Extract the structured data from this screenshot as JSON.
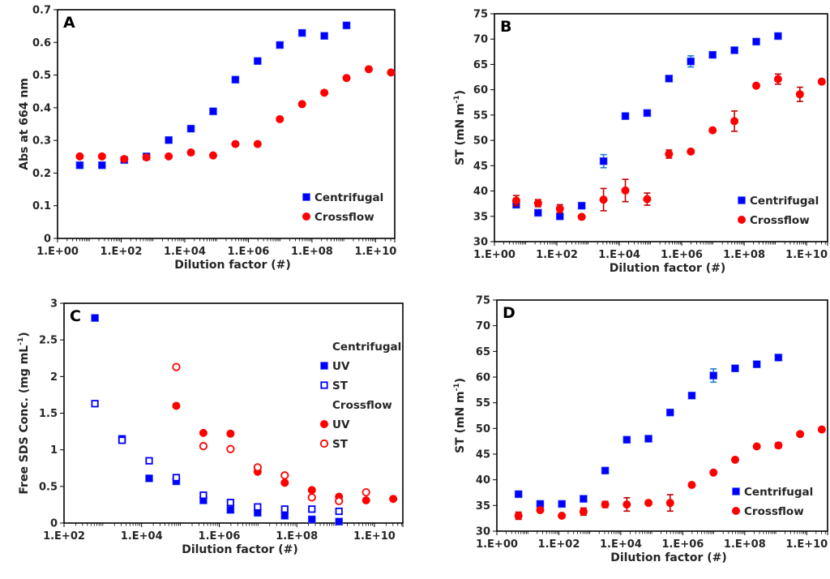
{
  "figure": {
    "colors": {
      "centrifugal": "#0000ff",
      "centrifugal_error": "#1f7fd0",
      "crossflow": "#ff0000",
      "crossflow_error": "#c00000",
      "axis": "#000000",
      "text": "#262626"
    }
  },
  "chart_data": [
    {
      "id": "A",
      "type": "scatter",
      "panel_label": "A",
      "title": "",
      "xlabel": "Dilution factor (#)",
      "ylabel": "Abs at 664 nm",
      "xscale": "log",
      "xlim": [
        1,
        40000000000.0
      ],
      "ylim": [
        0,
        0.7
      ],
      "yticks": [
        0,
        0.1,
        0.2,
        0.3,
        0.4,
        0.5,
        0.6,
        0.7
      ],
      "ytick_labels": [
        "0",
        "0.1",
        "0.2",
        "0.3",
        "0.4",
        "0.5",
        "0.6",
        "0.7"
      ],
      "xticks": [
        1,
        100.0,
        10000.0,
        1000000.0,
        100000000.0,
        10000000000.0
      ],
      "xtick_labels": [
        "1.E+00",
        "1.E+02",
        "1.E+04",
        "1.E+06",
        "1.E+08",
        "1.E+10"
      ],
      "grid": false,
      "legend_position": "bottom-right",
      "series": [
        {
          "name": "Centrifugal",
          "marker": "square-filled",
          "color": "#0000ff",
          "x": [
            5,
            25,
            125,
            625,
            3125,
            15625,
            78125,
            390625,
            1953125,
            9765625,
            48828125,
            244140625,
            1220703125
          ],
          "y": [
            0.224,
            0.224,
            0.24,
            0.251,
            0.301,
            0.336,
            0.389,
            0.486,
            0.543,
            0.592,
            0.629,
            0.62,
            0.652
          ]
        },
        {
          "name": "Crossflow",
          "marker": "circle-filled",
          "color": "#ff0000",
          "x": [
            5,
            25,
            125,
            625,
            3125,
            15625,
            78125,
            390625,
            1953125,
            9765625,
            48828125,
            244140625,
            1220703125,
            6103515625,
            30517578125
          ],
          "y": [
            0.251,
            0.251,
            0.243,
            0.248,
            0.251,
            0.263,
            0.254,
            0.289,
            0.289,
            0.365,
            0.411,
            0.446,
            0.491,
            0.518,
            0.508
          ]
        }
      ]
    },
    {
      "id": "B",
      "type": "scatter",
      "panel_label": "B",
      "title": "",
      "xlabel": "Dilution factor (#)",
      "ylabel": "ST (mN m",
      "ylabel_sup": "-1",
      "ylabel_end": ")",
      "xscale": "log",
      "xlim": [
        1,
        47000000000.0
      ],
      "ylim": [
        30,
        75
      ],
      "yticks": [
        30,
        35,
        40,
        45,
        50,
        55,
        60,
        65,
        70,
        75
      ],
      "ytick_labels": [
        "30",
        "35",
        "40",
        "45",
        "50",
        "55",
        "60",
        "65",
        "70",
        "75"
      ],
      "xticks": [
        1,
        100.0,
        10000.0,
        1000000.0,
        100000000.0,
        10000000000.0
      ],
      "xtick_labels": [
        "1.E+00",
        "1.E+02",
        "1.E+04",
        "1.E+06",
        "1.E+08",
        "1.E+10"
      ],
      "grid": false,
      "legend_position": "bottom-right",
      "series": [
        {
          "name": "Centrifugal",
          "marker": "square-filled",
          "color": "#0000ff",
          "x": [
            5,
            25,
            125,
            625,
            3125,
            15625,
            78125,
            390625,
            1953125,
            9765625,
            48828125,
            244140625,
            1220703125
          ],
          "y": [
            37.3,
            35.7,
            35.0,
            37.1,
            45.9,
            54.8,
            55.4,
            62.2,
            65.6,
            66.9,
            67.8,
            69.5,
            70.6
          ],
          "yerr": [
            0.3,
            0.2,
            0.3,
            0.2,
            1.3,
            0.3,
            0.5,
            0.3,
            1.1,
            0.2,
            0.2,
            0.2,
            0.2
          ]
        },
        {
          "name": "Crossflow",
          "marker": "circle-filled",
          "color": "#ff0000",
          "x": [
            5,
            25,
            125,
            625,
            3125,
            15625,
            78125,
            390625,
            1953125,
            9765625,
            48828125,
            244140625,
            1220703125,
            6103515625,
            30517578125
          ],
          "y": [
            38.1,
            37.6,
            36.5,
            34.9,
            38.3,
            40.1,
            38.4,
            47.3,
            47.8,
            52.0,
            53.8,
            60.8,
            62.1,
            59.1,
            61.6
          ],
          "yerr": [
            1.0,
            0.7,
            0.8,
            0.2,
            2.2,
            2.2,
            1.2,
            0.8,
            0.3,
            0.3,
            2.0,
            0.4,
            1.0,
            1.4,
            0.3
          ]
        }
      ]
    },
    {
      "id": "C",
      "type": "scatter",
      "panel_label": "C",
      "title": "",
      "xlabel": "Dilution factor (#)",
      "ylabel": "Free SDS Conc. (mg mL",
      "ylabel_sup": "-1",
      "ylabel_end": ")",
      "xscale": "log",
      "xlim": [
        100,
        54000000000.0
      ],
      "ylim": [
        0,
        3
      ],
      "yticks": [
        0,
        0.5,
        1,
        1.5,
        2,
        2.5,
        3
      ],
      "ytick_labels": [
        "0",
        "0.5",
        "1",
        "1.5",
        "2",
        "2.5",
        "3"
      ],
      "xticks": [
        100.0,
        10000.0,
        1000000.0,
        100000000.0,
        10000000000.0
      ],
      "xtick_labels": [
        "1.E+02",
        "1.E+04",
        "1.E+06",
        "1.E+08",
        "1.E+10"
      ],
      "grid": false,
      "legend_position": "right",
      "legend_groups": [
        {
          "title": "Centrifugal",
          "items": [
            "UV",
            "ST"
          ]
        },
        {
          "title": "Crossflow",
          "items": [
            "UV",
            "ST"
          ]
        }
      ],
      "series": [
        {
          "name": "Centrifugal UV",
          "group": "Centrifugal",
          "label": "UV",
          "marker": "square-filled",
          "color": "#0000ff",
          "x": [
            625,
            3125,
            15625,
            78125,
            390625,
            1953125,
            9765625,
            48828125,
            244140625,
            1220703125
          ],
          "y": [
            2.8,
            1.15,
            0.61,
            0.57,
            0.31,
            0.18,
            0.14,
            0.1,
            0.05,
            0.02
          ]
        },
        {
          "name": "Centrifugal ST",
          "group": "Centrifugal",
          "label": "ST",
          "marker": "square-open",
          "color": "#0000ff",
          "x": [
            625,
            3125,
            15625,
            78125,
            390625,
            1953125,
            9765625,
            48828125,
            244140625,
            1220703125
          ],
          "y": [
            1.63,
            1.13,
            0.85,
            0.62,
            0.38,
            0.28,
            0.22,
            0.19,
            0.19,
            0.16
          ]
        },
        {
          "name": "Crossflow UV",
          "group": "Crossflow",
          "label": "UV",
          "marker": "circle-filled",
          "color": "#ff0000",
          "x": [
            78125,
            390625,
            1953125,
            9765625,
            48828125,
            244140625,
            1220703125,
            6103515625,
            30517578125
          ],
          "y": [
            1.6,
            1.23,
            1.22,
            0.7,
            0.55,
            0.45,
            0.36,
            0.31,
            0.33
          ]
        },
        {
          "name": "Crossflow ST",
          "group": "Crossflow",
          "label": "ST",
          "marker": "circle-open",
          "color": "#ff0000",
          "x": [
            78125,
            390625,
            1953125,
            9765625,
            48828125,
            244140625,
            1220703125,
            6103515625
          ],
          "y": [
            2.13,
            1.05,
            1.01,
            0.76,
            0.65,
            0.35,
            0.3,
            0.42
          ]
        }
      ]
    },
    {
      "id": "D",
      "type": "scatter",
      "panel_label": "D",
      "title": "",
      "xlabel": "Dilution factor (#)",
      "ylabel": "ST (mN m",
      "ylabel_sup": "-1",
      "ylabel_end": ")",
      "xscale": "log",
      "xlim": [
        1,
        47000000000.0
      ],
      "ylim": [
        30,
        75
      ],
      "yticks": [
        30,
        35,
        40,
        45,
        50,
        55,
        60,
        65,
        70,
        75
      ],
      "ytick_labels": [
        "30",
        "35",
        "40",
        "45",
        "50",
        "55",
        "60",
        "65",
        "70",
        "75"
      ],
      "xticks": [
        1,
        100.0,
        10000.0,
        1000000.0,
        100000000.0,
        10000000000.0
      ],
      "xtick_labels": [
        "1.E+00",
        "1.E+02",
        "1.E+04",
        "1.E+06",
        "1.E+08",
        "1.E+10"
      ],
      "grid": false,
      "legend_position": "bottom-right",
      "series": [
        {
          "name": "Centrifugal",
          "marker": "square-filled",
          "color": "#0000ff",
          "x": [
            5,
            25,
            125,
            625,
            3125,
            15625,
            78125,
            390625,
            1953125,
            9765625,
            48828125,
            244140625,
            1220703125
          ],
          "y": [
            37.2,
            35.3,
            35.3,
            36.3,
            41.8,
            47.8,
            48.0,
            53.1,
            56.4,
            60.3,
            61.7,
            62.5,
            63.8
          ],
          "yerr": [
            0.4,
            0.3,
            0.2,
            0.2,
            0.2,
            0.2,
            0.2,
            0.2,
            0.2,
            1.3,
            0.2,
            0.2,
            0.2
          ]
        },
        {
          "name": "Crossflow",
          "marker": "circle-filled",
          "color": "#ff0000",
          "x": [
            5,
            25,
            125,
            625,
            3125,
            15625,
            78125,
            390625,
            1953125,
            9765625,
            48828125,
            244140625,
            1220703125,
            6103515625,
            30517578125
          ],
          "y": [
            33.0,
            34.1,
            33.0,
            33.8,
            35.2,
            35.2,
            35.5,
            35.5,
            39.0,
            41.4,
            43.9,
            46.5,
            46.7,
            48.9,
            49.8
          ],
          "yerr": [
            0.7,
            0.2,
            0.2,
            0.7,
            0.6,
            1.3,
            0.2,
            1.6,
            0.3,
            0.2,
            0.2,
            0.2,
            0.5,
            0.2,
            0.2
          ]
        }
      ]
    }
  ]
}
